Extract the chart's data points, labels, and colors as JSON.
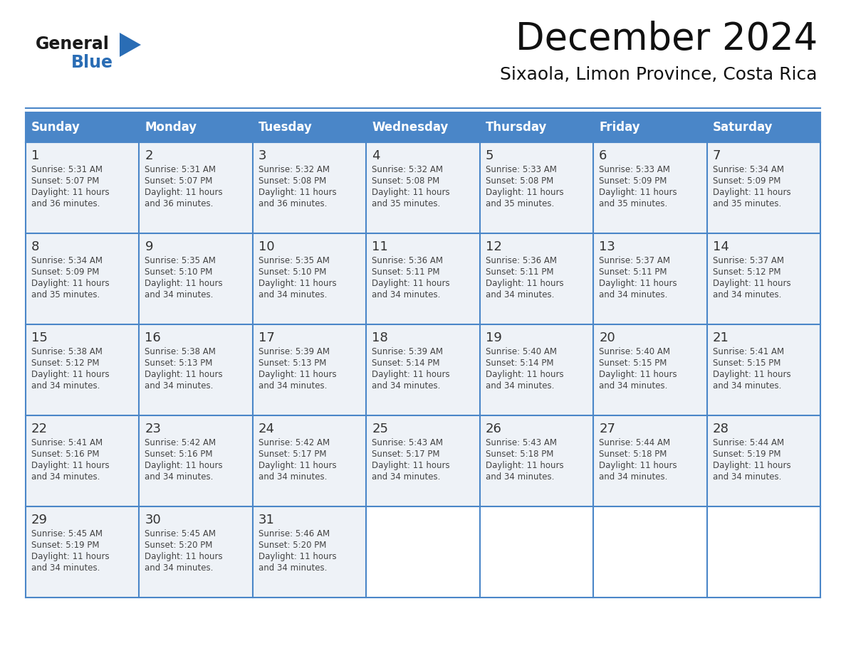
{
  "title": "December 2024",
  "subtitle": "Sixaola, Limon Province, Costa Rica",
  "header_color": "#4a86c8",
  "header_text_color": "#ffffff",
  "day_names": [
    "Sunday",
    "Monday",
    "Tuesday",
    "Wednesday",
    "Thursday",
    "Friday",
    "Saturday"
  ],
  "background_color": "#ffffff",
  "cell_bg_color": "#eef2f7",
  "border_color": "#4a86c8",
  "day_num_color": "#333333",
  "text_color": "#444444",
  "logo_general_color": "#1a1a1a",
  "logo_blue_color": "#2a6db5",
  "days": [
    {
      "date": 1,
      "row": 0,
      "col": 0,
      "sunrise": "5:31 AM",
      "sunset": "5:07 PM",
      "daylight_h": "11 hours",
      "daylight_m": "36 minutes."
    },
    {
      "date": 2,
      "row": 0,
      "col": 1,
      "sunrise": "5:31 AM",
      "sunset": "5:07 PM",
      "daylight_h": "11 hours",
      "daylight_m": "36 minutes."
    },
    {
      "date": 3,
      "row": 0,
      "col": 2,
      "sunrise": "5:32 AM",
      "sunset": "5:08 PM",
      "daylight_h": "11 hours",
      "daylight_m": "36 minutes."
    },
    {
      "date": 4,
      "row": 0,
      "col": 3,
      "sunrise": "5:32 AM",
      "sunset": "5:08 PM",
      "daylight_h": "11 hours",
      "daylight_m": "35 minutes."
    },
    {
      "date": 5,
      "row": 0,
      "col": 4,
      "sunrise": "5:33 AM",
      "sunset": "5:08 PM",
      "daylight_h": "11 hours",
      "daylight_m": "35 minutes."
    },
    {
      "date": 6,
      "row": 0,
      "col": 5,
      "sunrise": "5:33 AM",
      "sunset": "5:09 PM",
      "daylight_h": "11 hours",
      "daylight_m": "35 minutes."
    },
    {
      "date": 7,
      "row": 0,
      "col": 6,
      "sunrise": "5:34 AM",
      "sunset": "5:09 PM",
      "daylight_h": "11 hours",
      "daylight_m": "35 minutes."
    },
    {
      "date": 8,
      "row": 1,
      "col": 0,
      "sunrise": "5:34 AM",
      "sunset": "5:09 PM",
      "daylight_h": "11 hours",
      "daylight_m": "35 minutes."
    },
    {
      "date": 9,
      "row": 1,
      "col": 1,
      "sunrise": "5:35 AM",
      "sunset": "5:10 PM",
      "daylight_h": "11 hours",
      "daylight_m": "34 minutes."
    },
    {
      "date": 10,
      "row": 1,
      "col": 2,
      "sunrise": "5:35 AM",
      "sunset": "5:10 PM",
      "daylight_h": "11 hours",
      "daylight_m": "34 minutes."
    },
    {
      "date": 11,
      "row": 1,
      "col": 3,
      "sunrise": "5:36 AM",
      "sunset": "5:11 PM",
      "daylight_h": "11 hours",
      "daylight_m": "34 minutes."
    },
    {
      "date": 12,
      "row": 1,
      "col": 4,
      "sunrise": "5:36 AM",
      "sunset": "5:11 PM",
      "daylight_h": "11 hours",
      "daylight_m": "34 minutes."
    },
    {
      "date": 13,
      "row": 1,
      "col": 5,
      "sunrise": "5:37 AM",
      "sunset": "5:11 PM",
      "daylight_h": "11 hours",
      "daylight_m": "34 minutes."
    },
    {
      "date": 14,
      "row": 1,
      "col": 6,
      "sunrise": "5:37 AM",
      "sunset": "5:12 PM",
      "daylight_h": "11 hours",
      "daylight_m": "34 minutes."
    },
    {
      "date": 15,
      "row": 2,
      "col": 0,
      "sunrise": "5:38 AM",
      "sunset": "5:12 PM",
      "daylight_h": "11 hours",
      "daylight_m": "34 minutes."
    },
    {
      "date": 16,
      "row": 2,
      "col": 1,
      "sunrise": "5:38 AM",
      "sunset": "5:13 PM",
      "daylight_h": "11 hours",
      "daylight_m": "34 minutes."
    },
    {
      "date": 17,
      "row": 2,
      "col": 2,
      "sunrise": "5:39 AM",
      "sunset": "5:13 PM",
      "daylight_h": "11 hours",
      "daylight_m": "34 minutes."
    },
    {
      "date": 18,
      "row": 2,
      "col": 3,
      "sunrise": "5:39 AM",
      "sunset": "5:14 PM",
      "daylight_h": "11 hours",
      "daylight_m": "34 minutes."
    },
    {
      "date": 19,
      "row": 2,
      "col": 4,
      "sunrise": "5:40 AM",
      "sunset": "5:14 PM",
      "daylight_h": "11 hours",
      "daylight_m": "34 minutes."
    },
    {
      "date": 20,
      "row": 2,
      "col": 5,
      "sunrise": "5:40 AM",
      "sunset": "5:15 PM",
      "daylight_h": "11 hours",
      "daylight_m": "34 minutes."
    },
    {
      "date": 21,
      "row": 2,
      "col": 6,
      "sunrise": "5:41 AM",
      "sunset": "5:15 PM",
      "daylight_h": "11 hours",
      "daylight_m": "34 minutes."
    },
    {
      "date": 22,
      "row": 3,
      "col": 0,
      "sunrise": "5:41 AM",
      "sunset": "5:16 PM",
      "daylight_h": "11 hours",
      "daylight_m": "34 minutes."
    },
    {
      "date": 23,
      "row": 3,
      "col": 1,
      "sunrise": "5:42 AM",
      "sunset": "5:16 PM",
      "daylight_h": "11 hours",
      "daylight_m": "34 minutes."
    },
    {
      "date": 24,
      "row": 3,
      "col": 2,
      "sunrise": "5:42 AM",
      "sunset": "5:17 PM",
      "daylight_h": "11 hours",
      "daylight_m": "34 minutes."
    },
    {
      "date": 25,
      "row": 3,
      "col": 3,
      "sunrise": "5:43 AM",
      "sunset": "5:17 PM",
      "daylight_h": "11 hours",
      "daylight_m": "34 minutes."
    },
    {
      "date": 26,
      "row": 3,
      "col": 4,
      "sunrise": "5:43 AM",
      "sunset": "5:18 PM",
      "daylight_h": "11 hours",
      "daylight_m": "34 minutes."
    },
    {
      "date": 27,
      "row": 3,
      "col": 5,
      "sunrise": "5:44 AM",
      "sunset": "5:18 PM",
      "daylight_h": "11 hours",
      "daylight_m": "34 minutes."
    },
    {
      "date": 28,
      "row": 3,
      "col": 6,
      "sunrise": "5:44 AM",
      "sunset": "5:19 PM",
      "daylight_h": "11 hours",
      "daylight_m": "34 minutes."
    },
    {
      "date": 29,
      "row": 4,
      "col": 0,
      "sunrise": "5:45 AM",
      "sunset": "5:19 PM",
      "daylight_h": "11 hours",
      "daylight_m": "34 minutes."
    },
    {
      "date": 30,
      "row": 4,
      "col": 1,
      "sunrise": "5:45 AM",
      "sunset": "5:20 PM",
      "daylight_h": "11 hours",
      "daylight_m": "34 minutes."
    },
    {
      "date": 31,
      "row": 4,
      "col": 2,
      "sunrise": "5:46 AM",
      "sunset": "5:20 PM",
      "daylight_h": "11 hours",
      "daylight_m": "34 minutes."
    }
  ]
}
